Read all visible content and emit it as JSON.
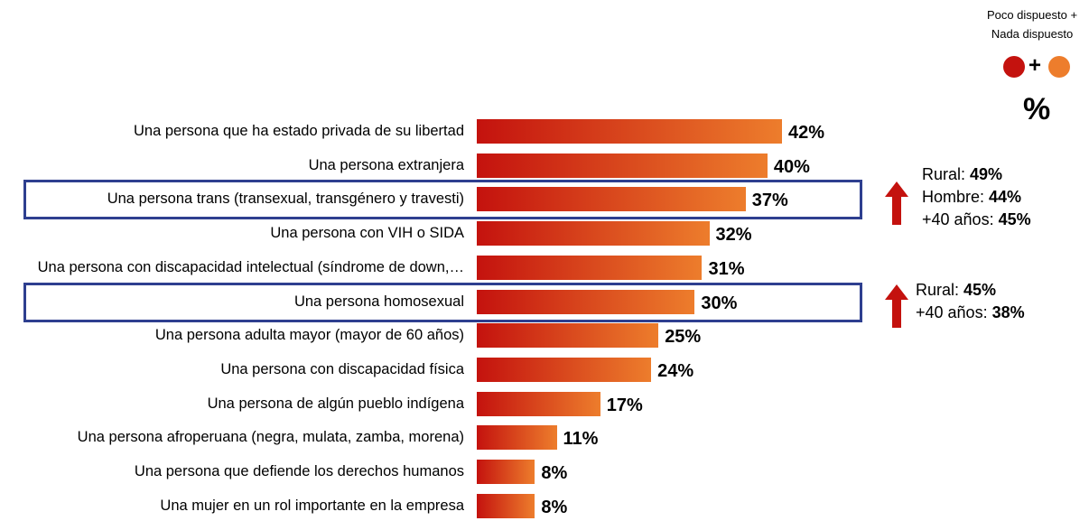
{
  "legend": {
    "label": "Poco dispuesto +\nNada dispuesto",
    "unit": "%",
    "plus": "+",
    "colors": [
      "#c4120e",
      "#ed7d2c"
    ]
  },
  "chart_data": {
    "type": "bar",
    "orientation": "horizontal",
    "categories": [
      "Una persona que ha estado privada de su libertad",
      "Una persona extranjera",
      "Una persona trans (transexual, transgénero y travesti)",
      "Una persona con VIH o SIDA",
      "Una persona con discapacidad intelectual (síndrome de down,…",
      "Una persona homosexual",
      "Una persona adulta mayor (mayor de 60 años)",
      "Una persona con discapacidad física",
      "Una persona de algún pueblo indígena",
      "Una persona afroperuana (negra, mulata, zamba, morena)",
      "Una persona que defiende los derechos humanos",
      "Una mujer en un rol importante en la empresa"
    ],
    "values": [
      42,
      40,
      37,
      32,
      31,
      30,
      25,
      24,
      17,
      11,
      8,
      8
    ],
    "value_labels": [
      "42%",
      "40%",
      "37%",
      "32%",
      "31%",
      "30%",
      "25%",
      "24%",
      "17%",
      "11%",
      "8%",
      "8%"
    ],
    "xlim": [
      0,
      100
    ],
    "grid": false,
    "highlighted": [
      2,
      5
    ],
    "colors": {
      "bar_start": "#c4120e",
      "bar_end": "#ed7d2c",
      "highlight": "#2e3f8f",
      "arrow": "#c4120e"
    }
  },
  "annotations": [
    {
      "row": 2,
      "lines": [
        {
          "label": "Rural: ",
          "value": "49%"
        },
        {
          "label": "Hombre: ",
          "value": "44%"
        },
        {
          "label": "+40 años: ",
          "value": "45%"
        }
      ]
    },
    {
      "row": 5,
      "lines": [
        {
          "label": "Rural: ",
          "value": "45%"
        },
        {
          "label": "+40 años: ",
          "value": "38%"
        }
      ]
    }
  ]
}
